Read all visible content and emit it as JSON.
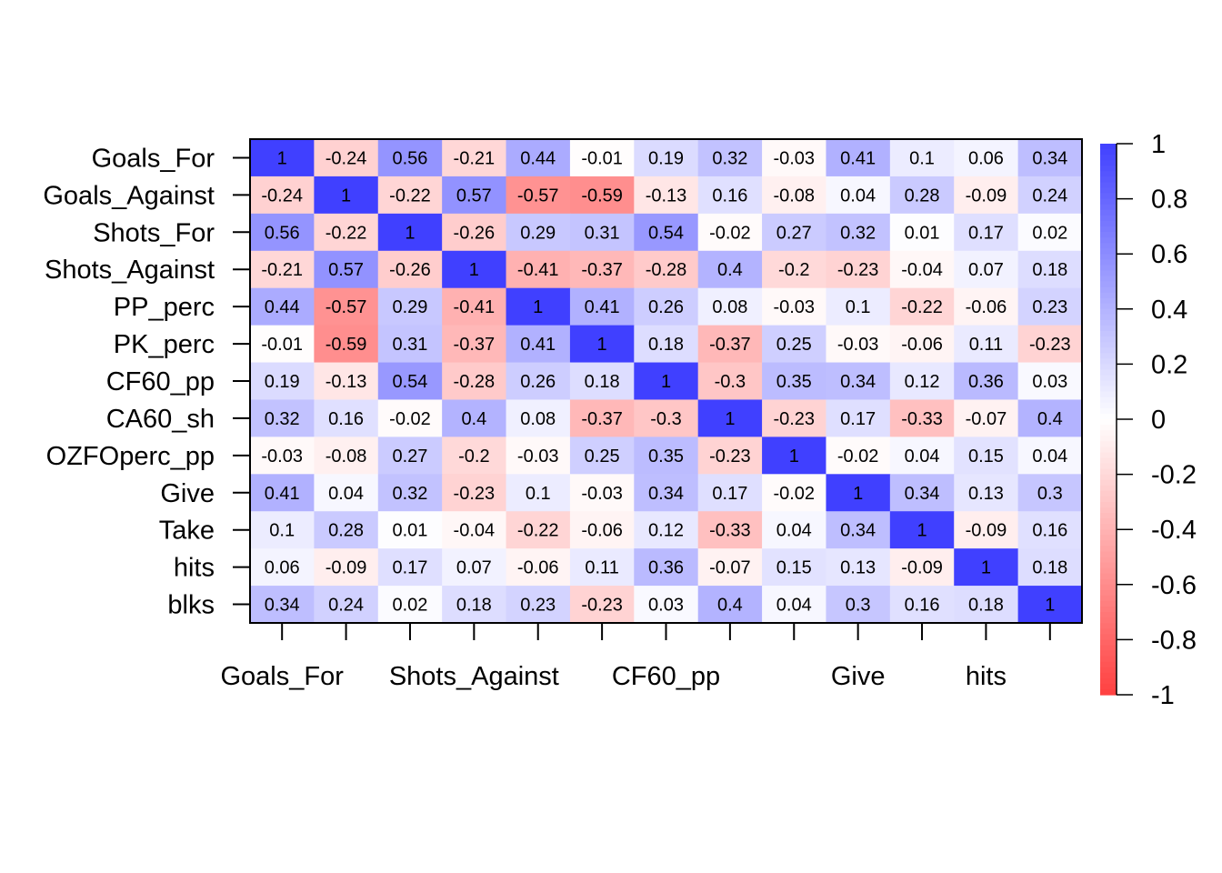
{
  "chart_data": {
    "type": "heatmap",
    "row_labels": [
      "Goals_For",
      "Goals_Against",
      "Shots_For",
      "Shots_Against",
      "PP_perc",
      "PK_perc",
      "CF60_pp",
      "CA60_sh",
      "OZFOperc_pp",
      "Give",
      "Take",
      "hits",
      "blks"
    ],
    "x_tick_labels": [
      "Goals_For",
      "Shots_Against",
      "CF60_pp",
      "Give",
      "hits"
    ],
    "x_tick_label_columns": [
      0,
      3,
      6,
      9,
      11
    ],
    "values": [
      [
        1,
        -0.24,
        0.56,
        -0.21,
        0.44,
        -0.01,
        0.19,
        0.32,
        -0.03,
        0.41,
        0.1,
        0.06,
        0.34
      ],
      [
        -0.24,
        1,
        -0.22,
        0.57,
        -0.57,
        -0.59,
        -0.13,
        0.16,
        -0.08,
        0.04,
        0.28,
        -0.09,
        0.24
      ],
      [
        0.56,
        -0.22,
        1,
        -0.26,
        0.29,
        0.31,
        0.54,
        -0.02,
        0.27,
        0.32,
        0.01,
        0.17,
        0.02
      ],
      [
        -0.21,
        0.57,
        -0.26,
        1,
        -0.41,
        -0.37,
        -0.28,
        0.4,
        -0.2,
        -0.23,
        -0.04,
        0.07,
        0.18
      ],
      [
        0.44,
        -0.57,
        0.29,
        -0.41,
        1,
        0.41,
        0.26,
        0.08,
        -0.03,
        0.1,
        -0.22,
        -0.06,
        0.23
      ],
      [
        -0.01,
        -0.59,
        0.31,
        -0.37,
        0.41,
        1,
        0.18,
        -0.37,
        0.25,
        -0.03,
        -0.06,
        0.11,
        -0.23
      ],
      [
        0.19,
        -0.13,
        0.54,
        -0.28,
        0.26,
        0.18,
        1,
        -0.3,
        0.35,
        0.34,
        0.12,
        0.36,
        0.03
      ],
      [
        0.32,
        0.16,
        -0.02,
        0.4,
        0.08,
        -0.37,
        -0.3,
        1,
        -0.23,
        0.17,
        -0.33,
        -0.07,
        0.4
      ],
      [
        -0.03,
        -0.08,
        0.27,
        -0.2,
        -0.03,
        0.25,
        0.35,
        -0.23,
        1,
        -0.02,
        0.04,
        0.15,
        0.04
      ],
      [
        0.41,
        0.04,
        0.32,
        -0.23,
        0.1,
        -0.03,
        0.34,
        0.17,
        -0.02,
        1,
        0.34,
        0.13,
        0.3
      ],
      [
        0.1,
        0.28,
        0.01,
        -0.04,
        -0.22,
        -0.06,
        0.12,
        -0.33,
        0.04,
        0.34,
        1,
        -0.09,
        0.16
      ],
      [
        0.06,
        -0.09,
        0.17,
        0.07,
        -0.06,
        0.11,
        0.36,
        -0.07,
        0.15,
        0.13,
        -0.09,
        1,
        0.18
      ],
      [
        0.34,
        0.24,
        0.02,
        0.18,
        0.23,
        -0.23,
        0.03,
        0.4,
        0.04,
        0.3,
        0.16,
        0.18,
        1
      ]
    ],
    "color_scale": {
      "min": -1,
      "max": 1,
      "low_color": "#ff4040",
      "mid_color": "#ffffff",
      "high_color": "#4040ff"
    },
    "colorbar_ticks": [
      "1",
      "0.8",
      "0.6",
      "0.4",
      "0.2",
      "0",
      "-0.2",
      "-0.4",
      "-0.6",
      "-0.8",
      "-1"
    ],
    "colorbar_tick_values": [
      1,
      0.8,
      0.6,
      0.4,
      0.2,
      0,
      -0.2,
      -0.4,
      -0.6,
      -0.8,
      -1
    ],
    "legend_position": "right",
    "grid": false,
    "title": "",
    "xlabel": "",
    "ylabel": ""
  }
}
